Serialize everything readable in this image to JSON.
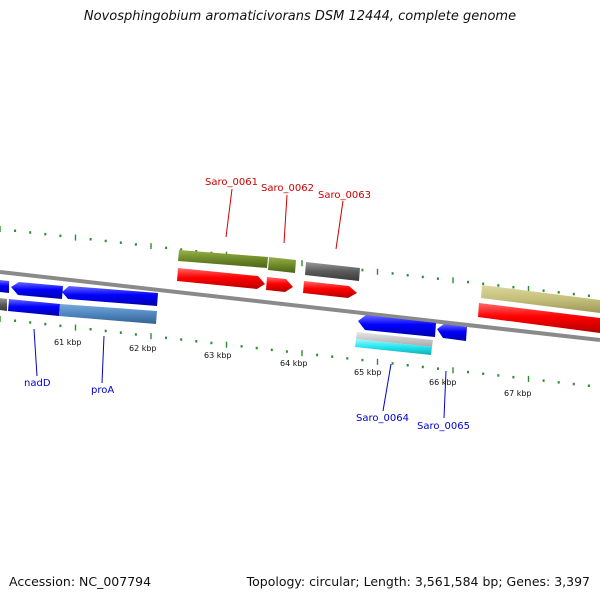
{
  "title": "Novosphingobium aromaticivorans DSM 12444, complete genome",
  "footer": {
    "accession_label": "Accession: NC_007794",
    "summary": "Topology: circular; Length: 3,561,584 bp; Genes: 3,397"
  },
  "ruler_labels": [
    "61 kbp",
    "62 kbp",
    "63 kbp",
    "64 kbp",
    "65 kbp",
    "66 kbp",
    "67 kbp"
  ],
  "gene_labels": {
    "top": [
      "Saro_0061",
      "Saro_0062",
      "Saro_0063"
    ],
    "bottom": [
      "nadD",
      "proA",
      "Saro_0064",
      "Saro_0065"
    ]
  },
  "colors": {
    "backbone": "#8a8a8a",
    "tick": "#2e8b2e",
    "cds_forward": "#ff0000",
    "cds_reverse": "#0000ff",
    "gene_olive": "#6e8a2a",
    "gene_khaki": "#c4bf7a",
    "gene_steelblue": "#4f86c0",
    "gene_gray": "#5a5a5a",
    "gene_cyan": "#22e6f0",
    "top_label": "#cc0000",
    "bottom_label": "#0000cc"
  }
}
